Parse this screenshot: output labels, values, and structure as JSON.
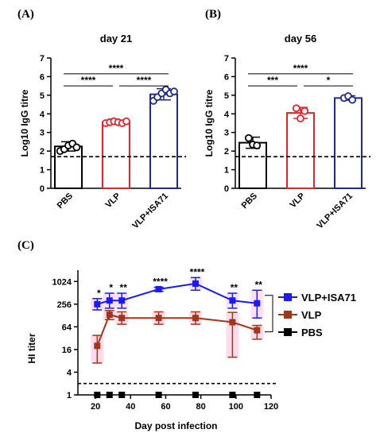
{
  "chart_data": [
    {
      "panel": "(A)",
      "type": "bar",
      "title": "day 21",
      "ylabel": "Log10 IgG titre",
      "ylim": [
        0,
        7
      ],
      "yticks": [
        "0",
        "1",
        "2",
        "3",
        "4",
        "5",
        "6",
        "7"
      ],
      "categories": [
        "PBS",
        "VLP",
        "VLP+ISA71"
      ],
      "values": [
        2.25,
        3.55,
        5.05
      ],
      "errors": [
        0.25,
        0.1,
        0.3
      ],
      "points": [
        [
          2.0,
          2.1,
          2.3,
          2.4,
          2.2
        ],
        [
          3.5,
          3.55,
          3.6,
          3.55,
          3.5,
          3.6
        ],
        [
          4.7,
          4.9,
          5.1,
          5.3,
          5.1,
          5.2
        ]
      ],
      "colors": [
        "#000000",
        "#e8232a",
        "#1f2a8c"
      ],
      "threshold": 1.7,
      "significance": [
        {
          "from": 0,
          "to": 2,
          "label": "****",
          "y": 6.15
        },
        {
          "from": 0,
          "to": 1,
          "label": "****",
          "y": 5.5
        },
        {
          "from": 1,
          "to": 2,
          "label": "****",
          "y": 5.5
        }
      ]
    },
    {
      "panel": "(B)",
      "type": "bar",
      "title": "day 56",
      "ylabel": "Log10 IgG titre",
      "ylim": [
        0,
        7
      ],
      "yticks": [
        "0",
        "1",
        "2",
        "3",
        "4",
        "5",
        "6",
        "7"
      ],
      "categories": [
        "PBS",
        "VLP",
        "VLP+ISA71"
      ],
      "values": [
        2.45,
        4.05,
        4.85
      ],
      "errors": [
        0.3,
        0.3,
        0.12
      ],
      "points": [
        [
          2.7,
          2.35,
          2.3
        ],
        [
          4.3,
          3.75,
          4.15
        ],
        [
          4.85,
          4.95,
          4.75
        ]
      ],
      "colors": [
        "#000000",
        "#e8232a",
        "#1f2a8c"
      ],
      "threshold": 1.7,
      "significance": [
        {
          "from": 0,
          "to": 2,
          "label": "****",
          "y": 6.15
        },
        {
          "from": 0,
          "to": 1,
          "label": "***",
          "y": 5.5
        },
        {
          "from": 1,
          "to": 2,
          "label": "*",
          "y": 5.5
        }
      ]
    },
    {
      "panel": "(C)",
      "type": "line",
      "xlabel": "Day post infection",
      "ylabel": "HI titer",
      "xlim": [
        10,
        120
      ],
      "xticks": [
        "20",
        "40",
        "60",
        "80",
        "100",
        "120"
      ],
      "ylog2lim": [
        0,
        11
      ],
      "yticks": [
        "1",
        "4",
        "16",
        "64",
        "256",
        "1024"
      ],
      "threshold": 2,
      "series": [
        {
          "name": "VLP+ISA71",
          "color": "#1a1aff",
          "x": [
            21,
            28,
            35,
            56,
            77,
            98,
            112
          ],
          "y": [
            256,
            320,
            320,
            640,
            900,
            320,
            270
          ],
          "err_lo": [
            180,
            200,
            200,
            560,
            600,
            200,
            110
          ],
          "err_hi": [
            360,
            500,
            500,
            720,
            1300,
            500,
            600
          ]
        },
        {
          "name": "VLP",
          "color": "#a0361a",
          "x": [
            21,
            28,
            35,
            56,
            77,
            98,
            112
          ],
          "y": [
            20,
            135,
            110,
            110,
            110,
            85,
            52
          ],
          "err_lo": [
            7,
            100,
            75,
            75,
            75,
            10,
            30
          ],
          "err_hi": [
            38,
            175,
            160,
            160,
            160,
            155,
            70
          ]
        },
        {
          "name": "PBS",
          "color": "#000000",
          "x": [
            21,
            28,
            35,
            56,
            77,
            98,
            112
          ],
          "y": [
            1,
            1,
            1,
            1,
            1,
            1,
            1
          ]
        }
      ],
      "significance": [
        {
          "x": 21,
          "label": "*"
        },
        {
          "x": 28,
          "label": "*"
        },
        {
          "x": 35,
          "label": "**"
        },
        {
          "x": 56,
          "label": "****"
        },
        {
          "x": 77,
          "label": "****"
        },
        {
          "x": 98,
          "label": "**"
        },
        {
          "x": 112,
          "label": "**"
        }
      ],
      "legend_position": "right"
    }
  ]
}
